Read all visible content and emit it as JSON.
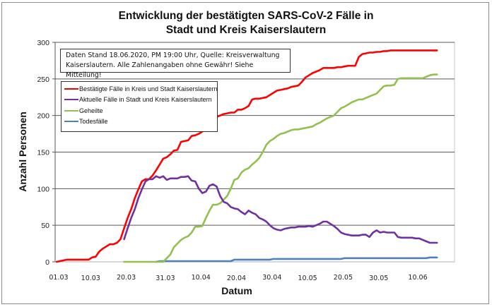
{
  "chart_data": {
    "type": "line",
    "title": "Entwicklung der bestätigten SARS-CoV-2 Fälle in Stadt und Kreis Kaiserslautern",
    "title_lines": [
      "Entwicklung der bestätigten SARS-CoV-2 Fälle in",
      "Stadt und Kreis Kaiserslautern"
    ],
    "xlabel": "Datum",
    "ylabel": "Anzahl Personen",
    "ylim": [
      0,
      300
    ],
    "yticks": [
      0,
      50,
      100,
      150,
      200,
      250,
      300
    ],
    "xtick_labels": [
      "01.03",
      "10.03",
      "20.03",
      "31.03",
      "10.04",
      "20.04",
      "30.04",
      "10.05",
      "20.05",
      "30.05",
      "10.06"
    ],
    "xtick_days": [
      0,
      9,
      19,
      30,
      40,
      50,
      60,
      70,
      80,
      90,
      101
    ],
    "grid": "horizontal",
    "legend_position": "upper left (inside plot)",
    "annotation": "Daten Stand 18.06.2020, PM 19:00 Uhr, Quelle: Kreisverwaltung Kaiserslautern. Alle Zahlenangaben ohne Gewähr! Siehe Mitteilung!",
    "annotation_lines": [
      "Daten Stand 18.06.2020, PM 19:00 Uhr, Quelle: Kreisverwaltung",
      "Kaiserslautern. Alle Zahlenangaben ohne Gewähr! Siehe Mitteilung!"
    ],
    "x_start": "01.03",
    "x_unit": "day index from 01.03.2020",
    "series": [
      {
        "name": "Bestätigte Fälle in Kreis und Stadt Kaiserslautern",
        "color": "#ff0000",
        "start_day": 0,
        "values": [
          0,
          1,
          2,
          3,
          3,
          3,
          3,
          3,
          3,
          3,
          6,
          7,
          14,
          18,
          21,
          24,
          24,
          26,
          31,
          46,
          60,
          72,
          87,
          99,
          110,
          113,
          113,
          118,
          125,
          133,
          141,
          143,
          147,
          152,
          153,
          164,
          165,
          166,
          172,
          173,
          175,
          178,
          190,
          193,
          195,
          198,
          200,
          202,
          203,
          204,
          204,
          208,
          208,
          210,
          213,
          222,
          223,
          223,
          224,
          225,
          228,
          231,
          234,
          235,
          236,
          237,
          239,
          240,
          241,
          246,
          252,
          255,
          258,
          260,
          262,
          265,
          265,
          265,
          265,
          266,
          266,
          267,
          268,
          268,
          268,
          280,
          284,
          285,
          286,
          286,
          287,
          287,
          288,
          288,
          289,
          289,
          289,
          289,
          289,
          289,
          289,
          289,
          289,
          289,
          289,
          289,
          289,
          289
        ]
      },
      {
        "name": "Aktuelle Fälle in Stadt und Kreis Kaiserslautern",
        "color": "#7030a0",
        "start_day": 19,
        "values": [
          31,
          46,
          60,
          72,
          87,
          99,
          110,
          113,
          113,
          117,
          115,
          117,
          112,
          114,
          114,
          114,
          116,
          116,
          117,
          111,
          110,
          100,
          94,
          96,
          104,
          106,
          103,
          90,
          82,
          80,
          75,
          73,
          72,
          68,
          65,
          70,
          67,
          65,
          60,
          58,
          55,
          50,
          46,
          44,
          43,
          45,
          46,
          47,
          47,
          48,
          48,
          48,
          49,
          48,
          50,
          52,
          55,
          55,
          52,
          49,
          45,
          40,
          38,
          37,
          36,
          36,
          36,
          37,
          37,
          34,
          40,
          43,
          40,
          41,
          40,
          40,
          40,
          34,
          33,
          33,
          33,
          33,
          32,
          32,
          30,
          28,
          26,
          26,
          26
        ]
      },
      {
        "name": "Geheilte",
        "color": "#92c050",
        "start_day": 19,
        "values": [
          0,
          0,
          0,
          0,
          0,
          0,
          0,
          0,
          0,
          0,
          0,
          0,
          5,
          10,
          20,
          25,
          30,
          33,
          35,
          40,
          48,
          48,
          49,
          60,
          70,
          78,
          78,
          80,
          85,
          90,
          100,
          112,
          114,
          122,
          126,
          128,
          133,
          137,
          142,
          150,
          160,
          165,
          168,
          172,
          175,
          176,
          178,
          180,
          181,
          181,
          182,
          183,
          184,
          185,
          188,
          190,
          193,
          196,
          198,
          200,
          205,
          210,
          212,
          215,
          218,
          220,
          222,
          222,
          224,
          226,
          228,
          230,
          235,
          240,
          241,
          241,
          242,
          250,
          251,
          251,
          251,
          251,
          251,
          251,
          251,
          253,
          255,
          256,
          256
        ]
      },
      {
        "name": "Todesfälle",
        "color": "#4f81bd",
        "start_day": 28,
        "values": [
          0,
          1,
          1,
          1,
          1,
          1,
          1,
          1,
          1,
          1,
          1,
          1,
          1,
          1,
          1,
          1,
          1,
          1,
          1,
          1,
          1,
          1,
          3,
          3,
          3,
          3,
          3,
          3,
          3,
          3,
          3,
          3,
          3,
          4,
          4,
          4,
          4,
          4,
          4,
          4,
          4,
          4,
          4,
          4,
          4,
          4,
          4,
          4,
          4,
          4,
          4,
          4,
          4,
          5,
          5,
          5,
          5,
          5,
          5,
          5,
          5,
          5,
          5,
          5,
          5,
          5,
          5,
          5,
          5,
          5,
          5,
          5,
          5,
          5,
          5,
          5,
          5,
          6,
          6,
          6
        ]
      }
    ]
  }
}
